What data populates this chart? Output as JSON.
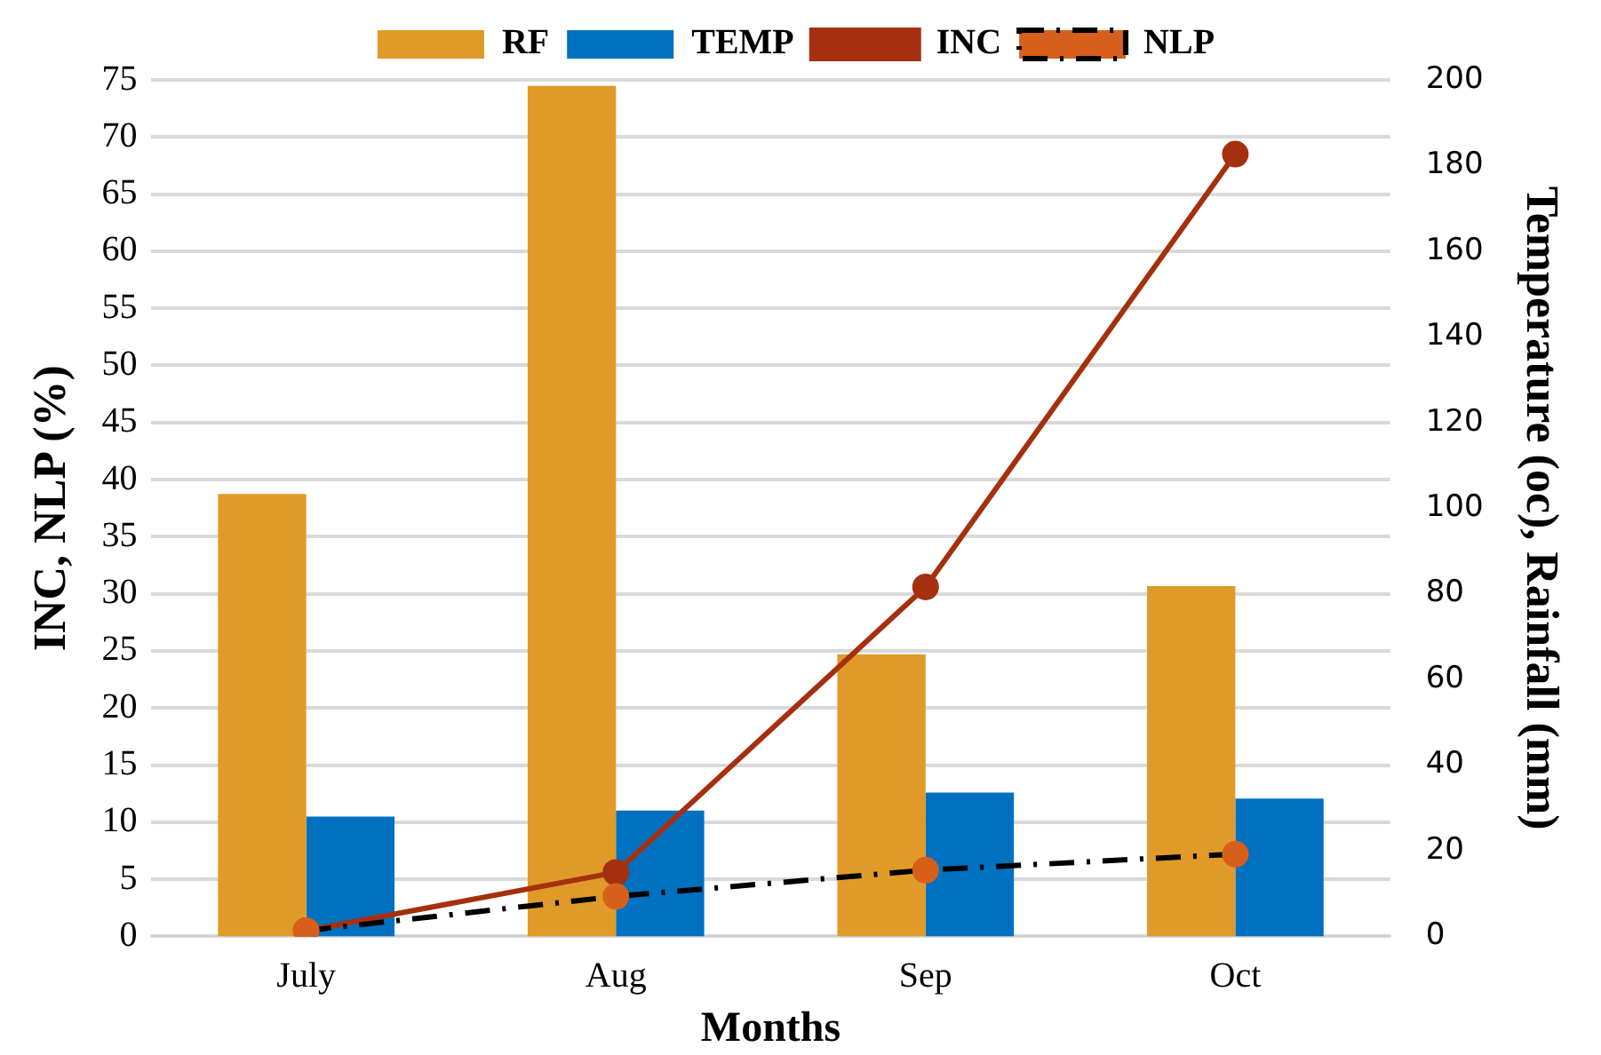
{
  "chart_data": {
    "type": "bar",
    "categories": [
      "July",
      "Aug",
      "Sep",
      "Oct"
    ],
    "xlabel": "Months",
    "ylabel": "INC, NLP (%)",
    "y2label": "Temperature (oc), Rainfall (mm)",
    "series": [
      {
        "name": "RF",
        "axis": "y2",
        "color": "#e09a28",
        "values": [
          103.3,
          198.6,
          65.9,
          81.8
        ]
      },
      {
        "name": "TEMP",
        "axis": "y2",
        "color": "#0070c0",
        "values": [
          28,
          29.4,
          33.6,
          32.2
        ]
      },
      {
        "name": "INC",
        "type": "line",
        "color": "#a5300f",
        "marker": "circle",
        "line_style": "solid",
        "values": [
          0.5,
          5.6,
          30.6,
          68.5
        ]
      },
      {
        "name": "NLP",
        "type": "line",
        "color": "#d85f1b",
        "marker": "circle",
        "line_style": "dashed",
        "values": [
          0.5,
          3.5,
          5.8,
          7.2
        ]
      }
    ],
    "ylim": [
      0,
      75
    ],
    "yticks": [
      0,
      5,
      10,
      15,
      20,
      25,
      30,
      35,
      40,
      45,
      50,
      55,
      60,
      65,
      70,
      75
    ],
    "y2lim": [
      0,
      200
    ],
    "y2ticks": [
      0,
      20,
      40,
      60,
      80,
      100,
      120,
      140,
      160,
      180,
      200
    ],
    "grid": "y",
    "legend": "top"
  }
}
